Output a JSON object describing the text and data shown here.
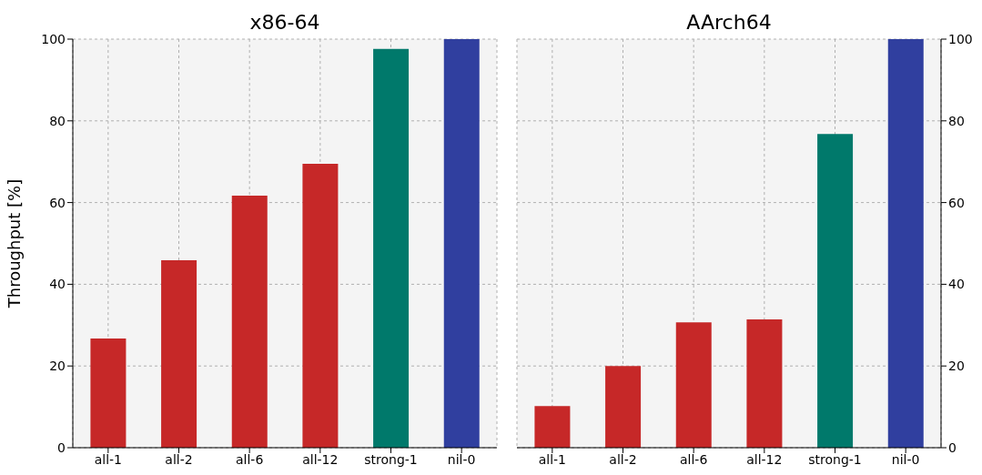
{
  "chart_data": [
    {
      "type": "bar",
      "title": "x86-64",
      "ylabel": "Throughput [%]",
      "categories": [
        "all-1",
        "all-2",
        "all-6",
        "all-12",
        "strong-1",
        "nil-0"
      ],
      "values": [
        26.7,
        45.9,
        61.7,
        69.5,
        97.6,
        100
      ],
      "colors": [
        "#c62828",
        "#c62828",
        "#c62828",
        "#c62828",
        "#00796b",
        "#303f9f"
      ],
      "ylim": [
        0,
        100
      ],
      "yticks": [
        0,
        20,
        40,
        60,
        80,
        100
      ],
      "grid": true
    },
    {
      "type": "bar",
      "title": "AArch64",
      "categories": [
        "all-1",
        "all-2",
        "all-6",
        "all-12",
        "strong-1",
        "nil-0"
      ],
      "values": [
        10.2,
        20.0,
        30.7,
        31.4,
        76.8,
        100
      ],
      "colors": [
        "#c62828",
        "#c62828",
        "#c62828",
        "#c62828",
        "#00796b",
        "#303f9f"
      ],
      "ylim": [
        0,
        100
      ],
      "yticks": [
        0,
        20,
        40,
        60,
        80,
        100
      ],
      "grid": true
    }
  ]
}
